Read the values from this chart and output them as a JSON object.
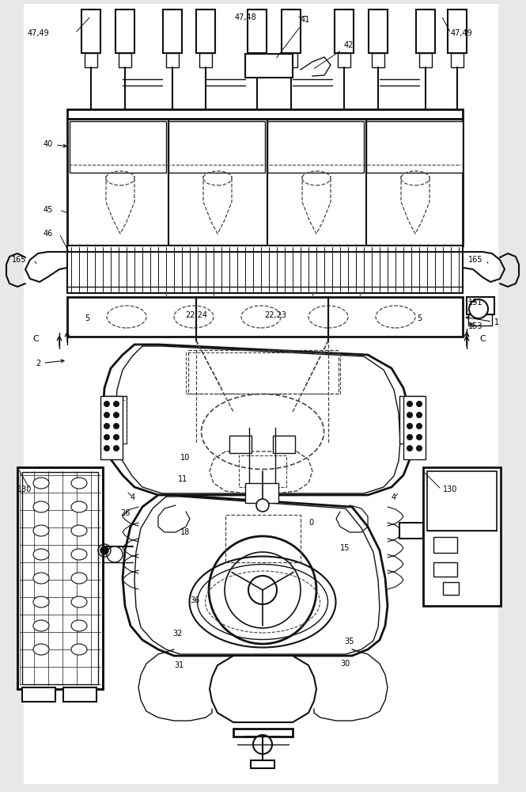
{
  "bg_color": "#e8e8e8",
  "line_color": "#111111",
  "dashed_color": "#444444",
  "figsize": [
    6.65,
    10.0
  ],
  "dpi": 100,
  "white": "#ffffff"
}
